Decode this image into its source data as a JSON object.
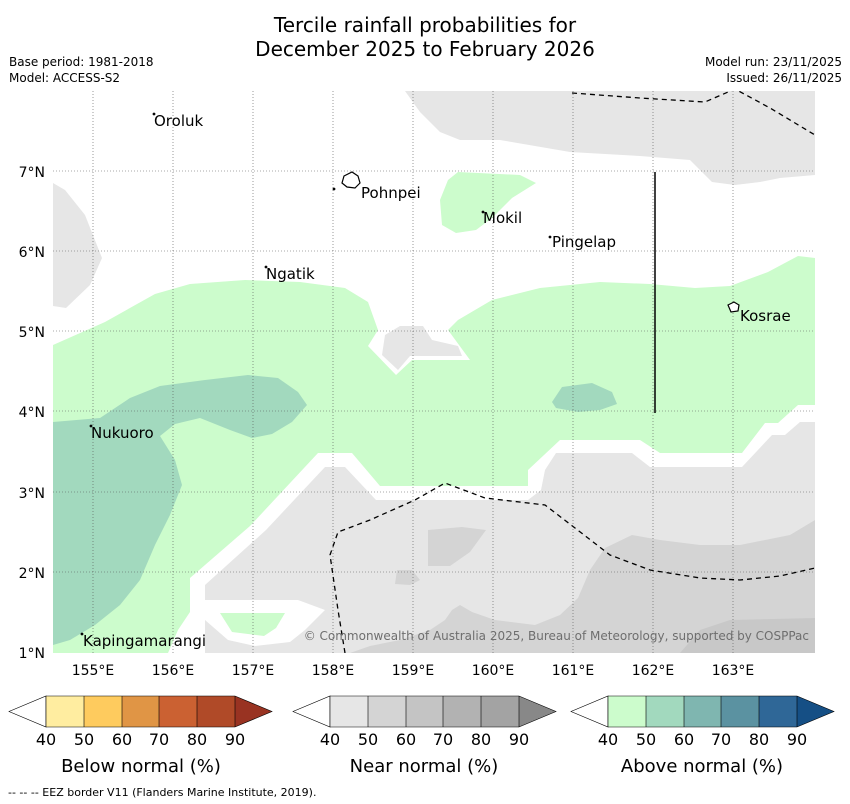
{
  "header": {
    "title_line1": "Tercile rainfall probabilities for",
    "title_line2": "December 2025 to February 2026",
    "base_period": "Base period: 1981-2018",
    "model": "Model: ACCESS-S2",
    "model_run": "Model run: 23/11/2025",
    "issued": "Issued: 26/11/2025"
  },
  "map": {
    "lon_ticks": [
      "155°E",
      "156°E",
      "157°E",
      "158°E",
      "159°E",
      "160°E",
      "161°E",
      "162°E",
      "163°E"
    ],
    "lat_ticks": [
      "7°N",
      "6°N",
      "5°N",
      "4°N",
      "3°N",
      "2°N",
      "1°N"
    ],
    "places": {
      "oroluk": "Oroluk",
      "pohnpei": "Pohnpei",
      "mokil": "Mokil",
      "pingelap": "Pingelap",
      "ngatik": "Ngatik",
      "kosrae": "Kosrae",
      "nukuoro": "Nukuoro",
      "kapingamarangi": "Kapingamarangi"
    },
    "copyright": "© Commonwealth of Australia 2025, Bureau of Meteorology, supported by COSPPac"
  },
  "legend": {
    "ticks": [
      "40",
      "50",
      "60",
      "70",
      "80",
      "90"
    ],
    "below_title": "Below normal (%)",
    "near_title": "Near normal (%)",
    "above_title": "Above normal (%)",
    "below_colors": [
      "#ffffff",
      "#ffeda0",
      "#fecb5e",
      "#e09545",
      "#cb6132",
      "#b04a28",
      "#993322"
    ],
    "near_colors": [
      "#ffffff",
      "#e6e6e6",
      "#d4d4d4",
      "#c4c4c4",
      "#b2b2b2",
      "#a3a3a3",
      "#888888"
    ],
    "above_colors": [
      "#ffffff",
      "#ccfccc",
      "#a2d9be",
      "#7fb6b0",
      "#5b92a1",
      "#2f6797",
      "#154f85"
    ]
  },
  "footer": "--  --  -- EEZ border V11 (Flanders Marine Institute, 2019)."
}
